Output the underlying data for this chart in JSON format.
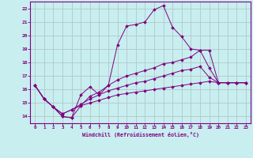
{
  "xlabel": "Windchill (Refroidissement éolien,°C)",
  "background_color": "#c8eef0",
  "line_color": "#800080",
  "grid_color": "#b0c8c8",
  "xlim": [
    -0.5,
    23.5
  ],
  "ylim": [
    13.5,
    22.5
  ],
  "xticks": [
    0,
    1,
    2,
    3,
    4,
    5,
    6,
    7,
    8,
    9,
    10,
    11,
    12,
    13,
    14,
    15,
    16,
    17,
    18,
    19,
    20,
    21,
    22,
    23
  ],
  "yticks": [
    14,
    15,
    16,
    17,
    18,
    19,
    20,
    21,
    22
  ],
  "series": [
    {
      "x": [
        0,
        1,
        2,
        3,
        4,
        5,
        6,
        7,
        8,
        9,
        10,
        11,
        12,
        13,
        14,
        15,
        16,
        17,
        18,
        19,
        20,
        21,
        22,
        23
      ],
      "y": [
        16.3,
        15.3,
        14.7,
        14.0,
        13.9,
        15.6,
        16.2,
        15.6,
        16.3,
        19.3,
        20.7,
        20.8,
        21.0,
        21.9,
        22.2,
        20.6,
        19.9,
        19.0,
        18.9,
        17.6,
        16.5,
        16.5,
        16.5,
        16.5
      ]
    },
    {
      "x": [
        0,
        1,
        2,
        3,
        4,
        5,
        6,
        7,
        8,
        9,
        10,
        11,
        12,
        13,
        14,
        15,
        16,
        17,
        18,
        19,
        20,
        21,
        22,
        23
      ],
      "y": [
        16.3,
        15.3,
        14.7,
        14.0,
        13.9,
        14.8,
        15.5,
        15.8,
        16.3,
        16.7,
        17.0,
        17.2,
        17.4,
        17.6,
        17.9,
        18.0,
        18.2,
        18.4,
        18.9,
        18.9,
        16.5,
        16.5,
        16.5,
        16.5
      ]
    },
    {
      "x": [
        0,
        1,
        2,
        3,
        4,
        5,
        6,
        7,
        8,
        9,
        10,
        11,
        12,
        13,
        14,
        15,
        16,
        17,
        18,
        19,
        20,
        21,
        22,
        23
      ],
      "y": [
        16.3,
        15.3,
        14.7,
        14.2,
        14.5,
        14.9,
        15.3,
        15.6,
        15.9,
        16.1,
        16.3,
        16.5,
        16.6,
        16.8,
        17.0,
        17.2,
        17.4,
        17.5,
        17.7,
        16.9,
        16.5,
        16.5,
        16.5,
        16.5
      ]
    },
    {
      "x": [
        0,
        1,
        2,
        3,
        4,
        5,
        6,
        7,
        8,
        9,
        10,
        11,
        12,
        13,
        14,
        15,
        16,
        17,
        18,
        19,
        20,
        21,
        22,
        23
      ],
      "y": [
        16.3,
        15.3,
        14.7,
        14.2,
        14.5,
        14.8,
        15.0,
        15.2,
        15.4,
        15.6,
        15.7,
        15.8,
        15.9,
        16.0,
        16.1,
        16.2,
        16.3,
        16.4,
        16.5,
        16.6,
        16.5,
        16.5,
        16.5,
        16.5
      ]
    }
  ]
}
